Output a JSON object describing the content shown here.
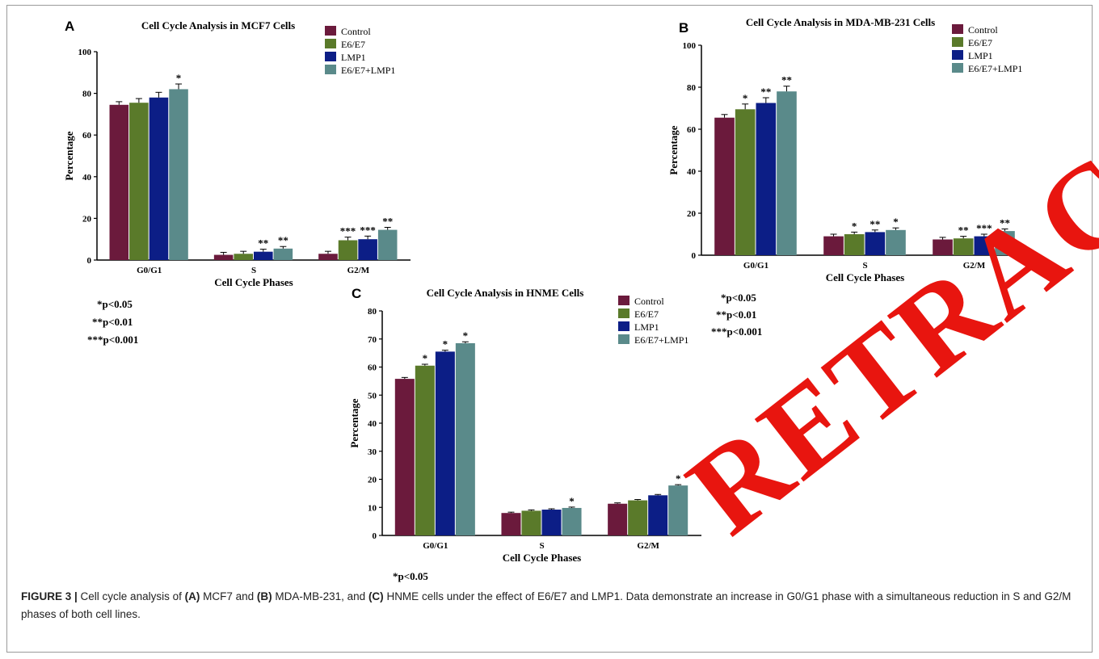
{
  "caption": {
    "label": "FIGURE 3 |",
    "text_1": " Cell cycle analysis of ",
    "bold_a": "(A)",
    "text_2": " MCF7 and ",
    "bold_b": "(B)",
    "text_3": " MDA-MB-231, and ",
    "bold_c": "(C)",
    "text_4": " HNME cells under the effect of E6/E7 and LMP1. Data demonstrate an increase in G0/G1 phase with a simultaneous reduction in S and G2/M phases of both cell lines."
  },
  "stamp": "RETRACTED",
  "significance": {
    "a": [
      "*p<0.05",
      "**p<0.01",
      "***p<0.001"
    ],
    "b": [
      "*p<0.05",
      "**p<0.01",
      "***p<0.001"
    ],
    "c": [
      "*p<0.05"
    ]
  },
  "colors": {
    "Control": "#6b1a3c",
    "E6/E7": "#5a7a2a",
    "LMP1": "#0c1e86",
    "E6/E7+LMP1": "#5a8a8a"
  },
  "chart_data": [
    {
      "panel": "A",
      "type": "bar",
      "title": "Cell Cycle Analysis in MCF7 Cells",
      "xlabel": "Cell Cycle Phases",
      "ylabel": "Percentage",
      "ylim": [
        0,
        100
      ],
      "yticks": [
        0,
        20,
        40,
        60,
        80,
        100
      ],
      "legend": "top-right",
      "categories": [
        "G0/G1",
        "S",
        "G2/M"
      ],
      "series": [
        {
          "name": "Control",
          "values": [
            74.5,
            2.5,
            3.0
          ],
          "errors": [
            1.5,
            1.2,
            1.2
          ],
          "stars": [
            "",
            "",
            ""
          ]
        },
        {
          "name": "E6/E7",
          "values": [
            75.5,
            3.0,
            9.5
          ],
          "errors": [
            2.0,
            1.2,
            1.5
          ],
          "stars": [
            "",
            "",
            "***"
          ]
        },
        {
          "name": "LMP1",
          "values": [
            78.0,
            4.0,
            10.0
          ],
          "errors": [
            2.5,
            1.2,
            1.5
          ],
          "stars": [
            "",
            "**",
            "***"
          ]
        },
        {
          "name": "E6/E7+LMP1",
          "values": [
            82.0,
            5.5,
            14.5
          ],
          "errors": [
            2.5,
            1.0,
            1.2
          ],
          "stars": [
            "*",
            "**",
            "**"
          ]
        }
      ]
    },
    {
      "panel": "B",
      "type": "bar",
      "title": "Cell Cycle Analysis in MDA-MB-231 Cells",
      "xlabel": "Cell Cycle Phases",
      "ylabel": "Percentage",
      "ylim": [
        0,
        100
      ],
      "yticks": [
        0,
        20,
        40,
        60,
        80,
        100
      ],
      "legend": "top-right",
      "categories": [
        "G0/G1",
        "S",
        "G2/M"
      ],
      "series": [
        {
          "name": "Control",
          "values": [
            65.5,
            9.0,
            7.5
          ],
          "errors": [
            1.5,
            1.0,
            1.0
          ],
          "stars": [
            "",
            "",
            ""
          ]
        },
        {
          "name": "E6/E7",
          "values": [
            69.5,
            10.0,
            8.0
          ],
          "errors": [
            2.5,
            1.0,
            1.0
          ],
          "stars": [
            "*",
            "*",
            "**"
          ]
        },
        {
          "name": "LMP1",
          "values": [
            72.5,
            11.0,
            9.0
          ],
          "errors": [
            2.5,
            1.0,
            1.0
          ],
          "stars": [
            "**",
            "**",
            "***"
          ]
        },
        {
          "name": "E6/E7+LMP1",
          "values": [
            78.0,
            12.0,
            11.5
          ],
          "errors": [
            2.5,
            1.0,
            1.0
          ],
          "stars": [
            "**",
            "*",
            "**"
          ]
        }
      ]
    },
    {
      "panel": "C",
      "type": "bar",
      "title": "Cell Cycle Analysis in HNME Cells",
      "xlabel": "Cell Cycle Phases",
      "ylabel": "Percentage",
      "ylim": [
        0,
        80
      ],
      "yticks": [
        0,
        10,
        20,
        30,
        40,
        50,
        60,
        70,
        80
      ],
      "legend": "top-right",
      "categories": [
        "G0/G1",
        "S",
        "G2/M"
      ],
      "series": [
        {
          "name": "Control",
          "values": [
            55.8,
            8.0,
            11.3
          ],
          "errors": [
            0.5,
            0.3,
            0.3
          ],
          "stars": [
            "",
            "",
            ""
          ]
        },
        {
          "name": "E6/E7",
          "values": [
            60.5,
            8.8,
            12.5
          ],
          "errors": [
            0.5,
            0.3,
            0.3
          ],
          "stars": [
            "*",
            "",
            ""
          ]
        },
        {
          "name": "LMP1",
          "values": [
            65.5,
            9.2,
            14.3
          ],
          "errors": [
            0.5,
            0.3,
            0.3
          ],
          "stars": [
            "*",
            "",
            ""
          ]
        },
        {
          "name": "E6/E7+LMP1",
          "values": [
            68.5,
            9.8,
            17.8
          ],
          "errors": [
            0.5,
            0.3,
            0.3
          ],
          "stars": [
            "*",
            "*",
            "*"
          ]
        }
      ]
    }
  ]
}
